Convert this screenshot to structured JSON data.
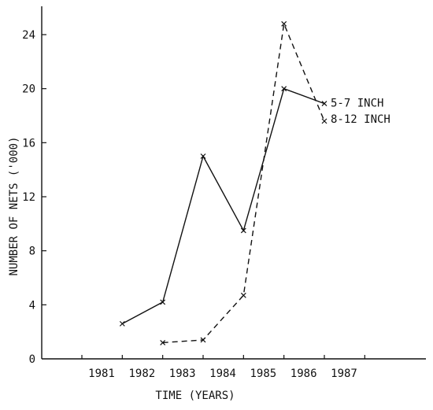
{
  "chart_data": {
    "type": "line",
    "title": "",
    "xlabel": "TIME (YEARS)",
    "ylabel": "NUMBER OF NETS ('000)",
    "x_tick_labels": [
      "1981",
      "1982",
      "1983",
      "1984",
      "1985",
      "1986",
      "1987"
    ],
    "y_tick_labels": [
      "0",
      "4",
      "8",
      "12",
      "16",
      "20",
      "24"
    ],
    "xlim": [
      1980.1,
      1988.5
    ],
    "ylim": [
      0,
      26
    ],
    "grid": false,
    "series": [
      {
        "name": "5-7 INCH",
        "style": "solid",
        "x": [
          1982,
          1983,
          1984,
          1985,
          1986,
          1987
        ],
        "y": [
          2.6,
          4.2,
          15.0,
          9.5,
          20.0,
          18.9
        ]
      },
      {
        "name": "8-12 INCH",
        "style": "dashed",
        "x": [
          1983,
          1984,
          1985,
          1986,
          1987
        ],
        "y": [
          1.2,
          1.4,
          4.7,
          24.8,
          17.6
        ]
      }
    ]
  }
}
